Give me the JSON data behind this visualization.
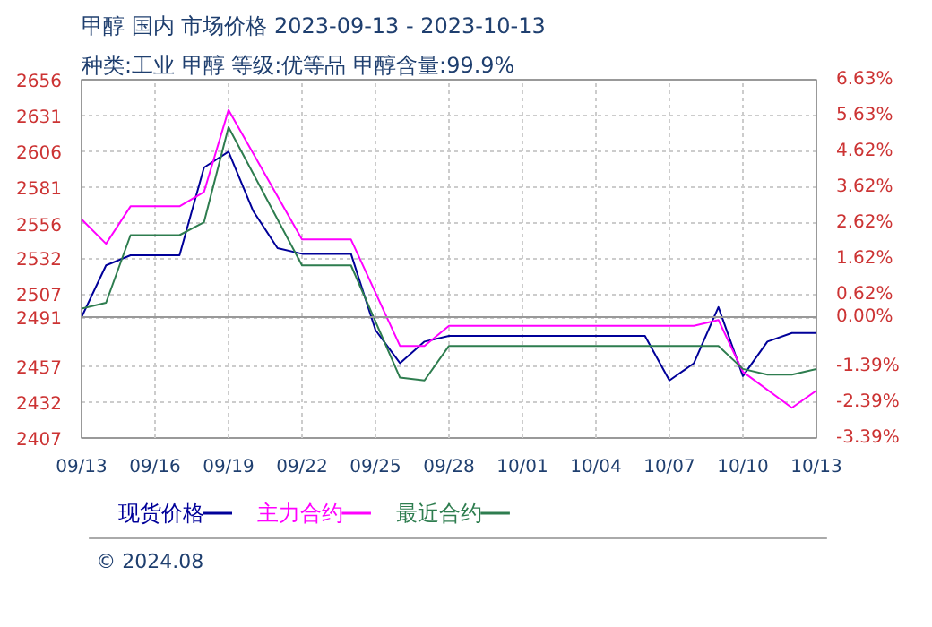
{
  "chart_data": {
    "type": "line",
    "title": "甲醇 国内 市场价格 2023-09-13 - 2023-10-13",
    "subtitle": "种类:工业 甲醇 等级:优等品 甲醇含量:99.9%",
    "annotations": [
      "© 2024.08"
    ],
    "series": [
      {
        "name": "现货价格",
        "color": "#000099",
        "x": [
          "2023-09-13",
          "2023-09-14",
          "2023-09-15",
          "2023-09-17",
          "2023-09-18",
          "2023-09-19",
          "2023-09-20",
          "2023-09-21",
          "2023-09-22",
          "2023-09-24",
          "2023-09-25",
          "2023-09-26",
          "2023-09-27",
          "2023-09-28",
          "2023-10-06",
          "2023-10-07",
          "2023-10-08",
          "2023-10-09",
          "2023-10-10",
          "2023-10-11",
          "2023-10-12",
          "2023-10-13"
        ],
        "values": [
          2491,
          2527,
          2534,
          2534,
          2595,
          2606,
          2565,
          2539,
          2535,
          2535,
          2482,
          2459,
          2474,
          2478,
          2478,
          2447,
          2459,
          2498,
          2450,
          2474,
          2480,
          2480
        ]
      },
      {
        "name": "主力合约",
        "color": "#ff00ff",
        "x": [
          "2023-09-13",
          "2023-09-14",
          "2023-09-15",
          "2023-09-17",
          "2023-09-18",
          "2023-09-19",
          "2023-09-22",
          "2023-09-24",
          "2023-09-26",
          "2023-09-27",
          "2023-09-28",
          "2023-10-08",
          "2023-10-09",
          "2023-10-10",
          "2023-10-12",
          "2023-10-13"
        ],
        "values": [
          2559,
          2542,
          2568,
          2568,
          2578,
          2635,
          2545,
          2545,
          2471,
          2471,
          2485,
          2485,
          2489,
          2453,
          2428,
          2440
        ]
      },
      {
        "name": "最近合约",
        "color": "#2e7d4f",
        "x": [
          "2023-09-13",
          "2023-09-14",
          "2023-09-15",
          "2023-09-17",
          "2023-09-18",
          "2023-09-19",
          "2023-09-22",
          "2023-09-24",
          "2023-09-26",
          "2023-09-27",
          "2023-09-28",
          "2023-10-09",
          "2023-10-10",
          "2023-10-11",
          "2023-10-12",
          "2023-10-13"
        ],
        "values": [
          2497,
          2501,
          2548,
          2548,
          2557,
          2623,
          2527,
          2527,
          2449,
          2447,
          2471,
          2471,
          2455,
          2451,
          2451,
          2455
        ]
      }
    ],
    "xlim": [
      "2023-09-13",
      "2023-10-13"
    ],
    "xticks": [
      {
        "value": "2023-09-13",
        "label": "09/13"
      },
      {
        "value": "2023-09-16",
        "label": "09/16"
      },
      {
        "value": "2023-09-19",
        "label": "09/19"
      },
      {
        "value": "2023-09-22",
        "label": "09/22"
      },
      {
        "value": "2023-09-25",
        "label": "09/25"
      },
      {
        "value": "2023-09-28",
        "label": "09/28"
      },
      {
        "value": "2023-10-01",
        "label": "10/01"
      },
      {
        "value": "2023-10-04",
        "label": "10/04"
      },
      {
        "value": "2023-10-07",
        "label": "10/07"
      },
      {
        "value": "2023-10-10",
        "label": "10/10"
      },
      {
        "value": "2023-10-13",
        "label": "10/13"
      }
    ],
    "ylim": [
      2407,
      2656
    ],
    "yticks": [
      2407,
      2432,
      2457,
      2491,
      2507,
      2532,
      2556,
      2581,
      2606,
      2631,
      2656
    ],
    "y2lim": [
      -3.39,
      6.63
    ],
    "y2ticks": [
      {
        "value": -3.39,
        "label": "-3.39%"
      },
      {
        "value": -2.39,
        "label": "-2.39%"
      },
      {
        "value": -1.39,
        "label": "-1.39%"
      },
      {
        "value": 0,
        "label": "0.00%"
      },
      {
        "value": 0.62,
        "label": "0.62%"
      },
      {
        "value": 1.62,
        "label": "1.62%"
      },
      {
        "value": 2.62,
        "label": "2.62%"
      },
      {
        "value": 3.62,
        "label": "3.62%"
      },
      {
        "value": 4.62,
        "label": "4.62%"
      },
      {
        "value": 5.63,
        "label": "5.63%"
      },
      {
        "value": 6.63,
        "label": "6.63%"
      }
    ],
    "ref_lines": [
      {
        "axis": "y",
        "value": 2491,
        "label": null,
        "color": "#999999"
      }
    ],
    "grid": true,
    "legend": "bottom",
    "marker": "none",
    "line_style": "solid"
  }
}
